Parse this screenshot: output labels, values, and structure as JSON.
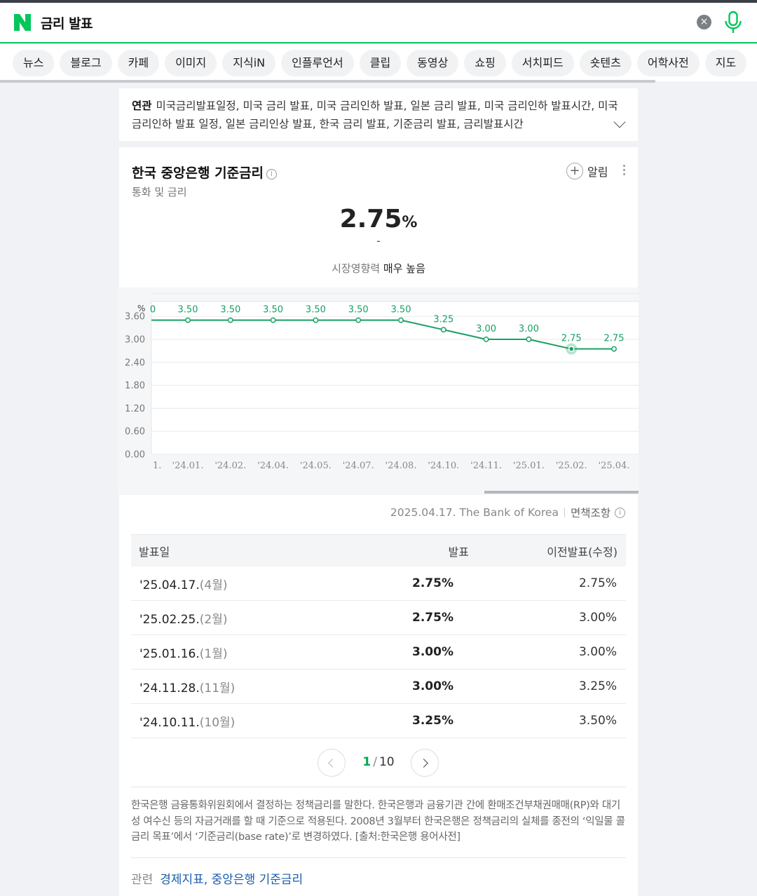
{
  "search": {
    "query": "금리 발표",
    "clear_label": "×"
  },
  "tabs": [
    "뉴스",
    "블로그",
    "카페",
    "이미지",
    "지식iN",
    "인플루언서",
    "클립",
    "동영상",
    "쇼핑",
    "서치피드",
    "숏텐츠",
    "어학사전",
    "지도"
  ],
  "related": {
    "label": "연관",
    "text": "미국금리발표일정, 미국 금리 발표, 미국 금리인하 발표, 일본 금리 발표, 미국 금리인하 발표시간, 미국 금리인하 발표 일정, 일본 금리인상 발표, 한국 금리 발표, 기준금리 발표, 금리발표시간"
  },
  "indicator": {
    "title": "한국 중앙은행 기준금리",
    "subtitle": "통화 및 금리",
    "alarm_label": "알림",
    "value": "2.75",
    "unit": "%",
    "change": "-",
    "impact_label": "시장영향력",
    "impact_value": "매우 높음"
  },
  "chart_data": {
    "type": "line",
    "ylabel": "%",
    "ylim": [
      0,
      4.2
    ],
    "yticks": [
      "0.00",
      "0.60",
      "1.20",
      "1.80",
      "2.40",
      "3.00",
      "3.60"
    ],
    "categories": [
      "'24.01.",
      "'24.02.",
      "'24.04.",
      "'24.05.",
      "'24.07.",
      "'24.08.",
      "'24.10.",
      "'24.11.",
      "'25.01.",
      "'25.02.",
      "'25.04."
    ],
    "values": [
      3.5,
      3.5,
      3.5,
      3.5,
      3.5,
      3.5,
      3.25,
      3.0,
      3.0,
      2.75,
      2.75
    ],
    "labels": [
      "3.50",
      "3.50",
      "3.50",
      "3.50",
      "3.50",
      "3.50",
      "3.25",
      "3.00",
      "3.00",
      "2.75",
      "2.75"
    ],
    "partial_first_label": "0",
    "partial_first_tick": "1.",
    "highlight_index": 9,
    "line_color": "#16a163"
  },
  "source": {
    "date": "2025.04.17.",
    "org": "The Bank of Korea",
    "disclaimer": "면책조항"
  },
  "table": {
    "headers": [
      "발표일",
      "발표",
      "이전발표(수정)"
    ],
    "rows": [
      {
        "date": "'25.04.17.",
        "month": "(4월)",
        "actual": "2.75%",
        "previous": "2.75%"
      },
      {
        "date": "'25.02.25.",
        "month": "(2월)",
        "actual": "2.75%",
        "previous": "3.00%"
      },
      {
        "date": "'25.01.16.",
        "month": "(1월)",
        "actual": "3.00%",
        "previous": "3.00%"
      },
      {
        "date": "'24.11.28.",
        "month": "(11월)",
        "actual": "3.00%",
        "previous": "3.25%"
      },
      {
        "date": "'24.10.11.",
        "month": "(10월)",
        "actual": "3.25%",
        "previous": "3.50%"
      }
    ]
  },
  "pager": {
    "current": "1",
    "separator": "/",
    "total": "10"
  },
  "description": "한국은행 금융통화위원회에서 결정하는 정책금리를 말한다. 한국은행과 금융기관 간에 환매조건부채권매매(RP)와 대기성 여수신 등의 자금거래를 할 때 기준으로 적용된다. 2008년 3월부터 한국은행은 정책금리의 실체를 종전의 ‘익일물 콜금리 목표’에서 ‘기준금리(base rate)’로 변경하였다. [출처:한국은행 용어사전]",
  "related_links": {
    "label": "관련",
    "links": "경제지표, 중앙은행 기준금리"
  },
  "colors": {
    "brand": "#03c75a",
    "line": "#16a163",
    "link": "#1a5dab"
  }
}
